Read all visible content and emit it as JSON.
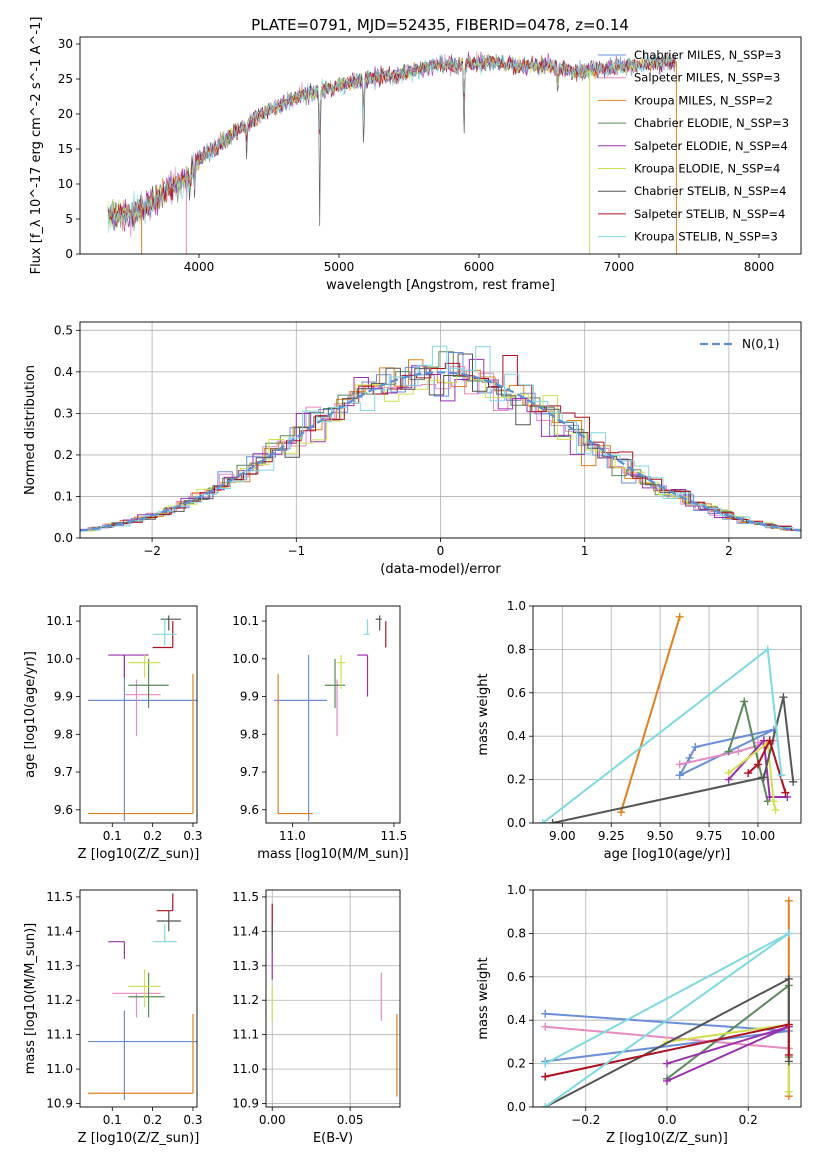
{
  "figure": {
    "title": "PLATE=0791, MJD=52435, FIBERID=0478, z=0.14"
  },
  "series_colors": [
    "#6a8fd8",
    "#e78ac3",
    "#e08020",
    "#5a8a5a",
    "#9a30b0",
    "#d0e050",
    "#555555",
    "#b01020",
    "#80d8e0"
  ],
  "chart_data": [
    {
      "id": "spectrum",
      "type": "line",
      "title": "PLATE=0791, MJD=52435, FIBERID=0478, z=0.14",
      "xlabel": "wavelength [Angstrom, rest frame]",
      "ylabel": "Flux [f_λ 10^-17 erg cm^-2 s^-1 A^-1]",
      "xlim": [
        3150,
        8300
      ],
      "ylim": [
        0,
        31
      ],
      "xticks": [
        4000,
        5000,
        6000,
        7000,
        8000
      ],
      "yticks": [
        0,
        5,
        10,
        15,
        20,
        25,
        30
      ],
      "grid": false,
      "legend": "right",
      "legend_entries": [
        "Chabrier MILES, N_SSP=3",
        "Salpeter MILES, N_SSP=3",
        "Kroupa MILES, N_SSP=2",
        "Chabrier ELODIE, N_SSP=3",
        "Salpeter ELODIE, N_SSP=4",
        "Kroupa ELODIE, N_SSP=4",
        "Chabrier STELIB, N_SSP=4",
        "Salpeter STELIB, N_SSP=4",
        "Kroupa STELIB, N_SSP=3"
      ],
      "continuum_x": [
        3350,
        3500,
        3600,
        3700,
        3800,
        3900,
        3950,
        4000,
        4100,
        4200,
        4300,
        4400,
        4500,
        4600,
        4700,
        4800,
        4900,
        5000,
        5100,
        5200,
        5300,
        5400,
        5500,
        5600,
        5700,
        5800,
        5900,
        6000,
        6100,
        6200,
        6300,
        6400,
        6500,
        6600,
        6700,
        6800,
        6900,
        7000,
        7100,
        7200,
        7300,
        7400
      ],
      "continuum_y": [
        5.5,
        5.7,
        6.5,
        8,
        9.5,
        10.5,
        12,
        13.5,
        15,
        16.5,
        18,
        19.5,
        20.5,
        21.5,
        22.5,
        23,
        23.5,
        24,
        24.5,
        25,
        25.5,
        25.5,
        26,
        26.5,
        27,
        27,
        27.2,
        27.3,
        27.5,
        27,
        26.8,
        27,
        27,
        26.5,
        26,
        26.3,
        26.5,
        26.8,
        27,
        27.2,
        27.3,
        27.5
      ],
      "dips": [
        [
          4862,
          5
        ],
        [
          3934,
          2
        ],
        [
          3969,
          2
        ],
        [
          5176,
          4
        ],
        [
          5893,
          4
        ],
        [
          6563,
          2
        ],
        [
          4340,
          2
        ]
      ],
      "masked_edges": [
        3590,
        3910,
        6790,
        7410
      ]
    },
    {
      "id": "residuals",
      "type": "histogram",
      "xlabel": "(data-model)/error",
      "ylabel": "Normed distribution",
      "xlim": [
        -2.5,
        2.5
      ],
      "ylim": [
        0,
        0.52
      ],
      "xticks": [
        -2,
        -1,
        0,
        1,
        2
      ],
      "yticks": [
        0,
        0.1,
        0.2,
        0.3,
        0.4,
        0.5
      ],
      "grid": true,
      "legend": "top-right",
      "legend_entries": [
        "N(0,1)"
      ],
      "bin_width": 0.1
    },
    {
      "id": "age_vs_Z",
      "type": "scatter",
      "xlabel": "Z [log10(Z/Z_sun)]",
      "ylabel": "age  [log10(age/yr)]",
      "xlim": [
        0.02,
        0.31
      ],
      "ylim": [
        9.565,
        10.14
      ],
      "xticks": [
        0.1,
        0.2,
        0.3
      ],
      "yticks": [
        9.6,
        9.7,
        9.8,
        9.9,
        10.0,
        10.1
      ],
      "grid": false,
      "points": [
        {
          "x": 0.13,
          "y": 9.89,
          "xerr": [
            0.09,
            0.18
          ],
          "yerr": [
            0.32,
            0.12
          ],
          "c": 0
        },
        {
          "x": 0.16,
          "y": 9.905,
          "xerr": [
            0.03,
            0.06
          ],
          "yerr": [
            0.11,
            0.04
          ],
          "c": 1
        },
        {
          "x": 0.3,
          "y": 9.59,
          "xerr": [
            0.26,
            0.0
          ],
          "yerr": [
            0.0,
            0.37
          ],
          "c": 2
        },
        {
          "x": 0.19,
          "y": 9.93,
          "xerr": [
            0.05,
            0.05
          ],
          "yerr": [
            0.06,
            0.07
          ],
          "c": 3
        },
        {
          "x": 0.13,
          "y": 10.01,
          "xerr": [
            0.04,
            0.06
          ],
          "yerr": [
            0.06,
            0.0
          ],
          "c": 4
        },
        {
          "x": 0.18,
          "y": 9.99,
          "xerr": [
            0.04,
            0.04
          ],
          "yerr": [
            0.04,
            0.02
          ],
          "c": 5
        },
        {
          "x": 0.24,
          "y": 10.105,
          "xerr": [
            0.02,
            0.03
          ],
          "yerr": [
            0.03,
            0.01
          ],
          "c": 6
        },
        {
          "x": 0.25,
          "y": 10.03,
          "xerr": [
            0.05,
            0.0
          ],
          "yerr": [
            0.0,
            0.07
          ],
          "c": 7
        },
        {
          "x": 0.23,
          "y": 10.065,
          "xerr": [
            0.03,
            0.03
          ],
          "yerr": [
            0.03,
            0.04
          ],
          "c": 8
        }
      ]
    },
    {
      "id": "age_vs_mass",
      "type": "scatter",
      "xlabel": "mass [log10(M/M_sun)]",
      "ylabel": "",
      "xlim": [
        10.87,
        11.53
      ],
      "ylim": [
        9.565,
        10.14
      ],
      "xticks": [
        11.0,
        11.5
      ],
      "yticks": [
        9.6,
        9.7,
        9.8,
        9.9,
        10.0,
        10.1
      ],
      "grid": false,
      "points": [
        {
          "x": 11.08,
          "y": 9.89,
          "xerr": [
            0.17,
            0.09
          ],
          "yerr": [
            0.32,
            0.12
          ],
          "c": 0
        },
        {
          "x": 11.22,
          "y": 9.905,
          "xerr": [
            0.0,
            0.0
          ],
          "yerr": [
            0.11,
            0.04
          ],
          "c": 1
        },
        {
          "x": 10.93,
          "y": 9.59,
          "xerr": [
            0.0,
            0.17
          ],
          "yerr": [
            0.0,
            0.37
          ],
          "c": 2
        },
        {
          "x": 11.21,
          "y": 9.93,
          "xerr": [
            0.05,
            0.05
          ],
          "yerr": [
            0.06,
            0.07
          ],
          "c": 3
        },
        {
          "x": 11.37,
          "y": 10.01,
          "xerr": [
            0.05,
            0.0
          ],
          "yerr": [
            0.11,
            0.0
          ],
          "c": 4
        },
        {
          "x": 11.24,
          "y": 9.99,
          "xerr": [
            0.02,
            0.02
          ],
          "yerr": [
            0.07,
            0.02
          ],
          "c": 5
        },
        {
          "x": 11.43,
          "y": 10.105,
          "xerr": [
            0.02,
            0.01
          ],
          "yerr": [
            0.03,
            0.01
          ],
          "c": 6
        },
        {
          "x": 11.46,
          "y": 10.03,
          "xerr": [
            0.0,
            0.0
          ],
          "yerr": [
            0.0,
            0.07
          ],
          "c": 7
        },
        {
          "x": 11.37,
          "y": 10.065,
          "xerr": [
            0.02,
            0.01
          ],
          "yerr": [
            0.0,
            0.04
          ],
          "c": 8
        }
      ]
    },
    {
      "id": "mw_vs_age",
      "type": "line",
      "xlabel": "age  [log10(age/yr)]",
      "ylabel": "mass weight",
      "xlim": [
        8.85,
        10.22
      ],
      "ylim": [
        0,
        1
      ],
      "xticks": [
        9.0,
        9.25,
        9.5,
        9.75,
        10.0
      ],
      "yticks": [
        0,
        0.2,
        0.4,
        0.6,
        0.8,
        1.0
      ],
      "grid": true,
      "series": [
        {
          "c": 0,
          "x": [
            9.6,
            9.65,
            9.68,
            10.08,
            9.6
          ],
          "y": [
            0.22,
            0.3,
            0.35,
            0.43,
            0.22
          ]
        },
        {
          "c": 1,
          "x": [
            9.6,
            9.9,
            10.08,
            10.0
          ],
          "y": [
            0.27,
            0.33,
            0.38,
            0.37
          ]
        },
        {
          "c": 2,
          "x": [
            9.3,
            9.6
          ],
          "y": [
            0.05,
            0.95
          ]
        },
        {
          "c": 3,
          "x": [
            9.85,
            9.93,
            10.02,
            10.05
          ],
          "y": [
            0.33,
            0.56,
            0.21,
            0.1
          ]
        },
        {
          "c": 4,
          "x": [
            9.85,
            10.03,
            10.06,
            10.15
          ],
          "y": [
            0.2,
            0.38,
            0.12,
            0.12
          ]
        },
        {
          "c": 5,
          "x": [
            9.85,
            10.05,
            10.08,
            10.09
          ],
          "y": [
            0.23,
            0.37,
            0.1,
            0.06
          ]
        },
        {
          "c": 6,
          "x": [
            8.95,
            10.03,
            10.13,
            10.18
          ],
          "y": [
            0.0,
            0.21,
            0.58,
            0.19
          ]
        },
        {
          "c": 7,
          "x": [
            9.95,
            10.0,
            10.06,
            10.14
          ],
          "y": [
            0.23,
            0.27,
            0.38,
            0.14
          ]
        },
        {
          "c": 8,
          "x": [
            8.9,
            10.05,
            10.12
          ],
          "y": [
            0.0,
            0.8,
            0.22
          ]
        }
      ]
    },
    {
      "id": "mass_vs_Z",
      "type": "scatter",
      "xlabel": "Z [log10(Z/Z_sun)]",
      "ylabel": "mass [log10(M/M_sun)]",
      "xlim": [
        0.02,
        0.31
      ],
      "ylim": [
        10.89,
        11.52
      ],
      "xticks": [
        0.1,
        0.2,
        0.3
      ],
      "yticks": [
        10.9,
        11.0,
        11.1,
        11.2,
        11.3,
        11.4,
        11.5
      ],
      "grid": false,
      "points": [
        {
          "x": 0.13,
          "y": 11.08,
          "xerr": [
            0.09,
            0.18
          ],
          "yerr": [
            0.17,
            0.09
          ],
          "c": 0
        },
        {
          "x": 0.16,
          "y": 11.22,
          "xerr": [
            0.06,
            0.06
          ],
          "yerr": [
            0.07,
            0.0
          ],
          "c": 1
        },
        {
          "x": 0.3,
          "y": 10.93,
          "xerr": [
            0.26,
            0.0
          ],
          "yerr": [
            0.0,
            0.23
          ],
          "c": 2
        },
        {
          "x": 0.19,
          "y": 11.21,
          "xerr": [
            0.05,
            0.04
          ],
          "yerr": [
            0.06,
            0.07
          ],
          "c": 3
        },
        {
          "x": 0.13,
          "y": 11.37,
          "xerr": [
            0.04,
            0.0
          ],
          "yerr": [
            0.05,
            0.0
          ],
          "c": 4
        },
        {
          "x": 0.18,
          "y": 11.24,
          "xerr": [
            0.04,
            0.04
          ],
          "yerr": [
            0.06,
            0.05
          ],
          "c": 5
        },
        {
          "x": 0.24,
          "y": 11.43,
          "xerr": [
            0.03,
            0.03
          ],
          "yerr": [
            0.03,
            0.03
          ],
          "c": 6
        },
        {
          "x": 0.25,
          "y": 11.46,
          "xerr": [
            0.04,
            0.0
          ],
          "yerr": [
            0.0,
            0.05
          ],
          "c": 7
        },
        {
          "x": 0.23,
          "y": 11.37,
          "xerr": [
            0.03,
            0.03
          ],
          "yerr": [
            0.0,
            0.05
          ],
          "c": 8
        }
      ]
    },
    {
      "id": "mass_vs_EBV",
      "type": "scatter",
      "xlabel": "E(B-V)",
      "ylabel": "",
      "xlim": [
        -0.004,
        0.082
      ],
      "ylim": [
        10.89,
        11.52
      ],
      "xticks": [
        0.0,
        0.05
      ],
      "yticks": [
        10.9,
        11.0,
        11.1,
        11.2,
        11.3,
        11.4,
        11.5
      ],
      "grid": true,
      "points": [
        {
          "x": 0.0,
          "y": 11.38,
          "xerr": [
            0,
            0
          ],
          "yerr": [
            0.04,
            0.04
          ],
          "c": 8
        },
        {
          "x": 0.0,
          "y": 11.41,
          "xerr": [
            0,
            0
          ],
          "yerr": [
            0.02,
            0.07
          ],
          "c": 7
        },
        {
          "x": 0.0,
          "y": 11.3,
          "xerr": [
            0,
            0
          ],
          "yerr": [
            0.04,
            0.04
          ],
          "c": 4
        },
        {
          "x": 0.0,
          "y": 11.2,
          "xerr": [
            0,
            0
          ],
          "yerr": [
            0.06,
            0.04
          ],
          "c": 5
        },
        {
          "x": 0.0,
          "y": 11.37,
          "xerr": [
            0,
            0
          ],
          "yerr": [
            0.03,
            0.05
          ],
          "c": 6
        },
        {
          "x": 0.07,
          "y": 11.2,
          "xerr": [
            0,
            0
          ],
          "yerr": [
            0.06,
            0.08
          ],
          "c": 1
        },
        {
          "x": 0.08,
          "y": 11.05,
          "xerr": [
            0,
            0
          ],
          "yerr": [
            0.13,
            0.11
          ],
          "c": 2
        }
      ]
    },
    {
      "id": "mw_vs_Z",
      "type": "line",
      "xlabel": "Z [log10(Z/Z_sun)]",
      "ylabel": "mass weight",
      "xlim": [
        -0.33,
        0.33
      ],
      "ylim": [
        0,
        1
      ],
      "xticks": [
        -0.2,
        0.0,
        0.2
      ],
      "yticks": [
        0,
        0.2,
        0.4,
        0.6,
        0.8,
        1.0
      ],
      "grid": true,
      "series": [
        {
          "c": 0,
          "x": [
            -0.3,
            0.3,
            -0.3
          ],
          "y": [
            0.43,
            0.35,
            0.21
          ]
        },
        {
          "c": 1,
          "x": [
            -0.3,
            0.3
          ],
          "y": [
            0.37,
            0.27
          ]
        },
        {
          "c": 2,
          "x": [
            0.3,
            0.3
          ],
          "y": [
            0.05,
            0.95
          ]
        },
        {
          "c": 3,
          "x": [
            0.0,
            0.3,
            0.3
          ],
          "y": [
            0.13,
            0.56,
            0.23
          ]
        },
        {
          "c": 4,
          "x": [
            0.0,
            0.3,
            0.0
          ],
          "y": [
            0.12,
            0.37,
            0.2
          ]
        },
        {
          "c": 5,
          "x": [
            0.0,
            0.3,
            0.3
          ],
          "y": [
            0.3,
            0.38,
            0.07
          ]
        },
        {
          "c": 6,
          "x": [
            -0.3,
            0.3,
            0.3
          ],
          "y": [
            0.0,
            0.59,
            0.21
          ]
        },
        {
          "c": 7,
          "x": [
            -0.3,
            0.3,
            0.3
          ],
          "y": [
            0.14,
            0.38,
            0.24
          ]
        },
        {
          "c": 8,
          "x": [
            -0.3,
            0.3,
            -0.3
          ],
          "y": [
            0.0,
            0.8,
            0.2
          ]
        }
      ]
    }
  ]
}
